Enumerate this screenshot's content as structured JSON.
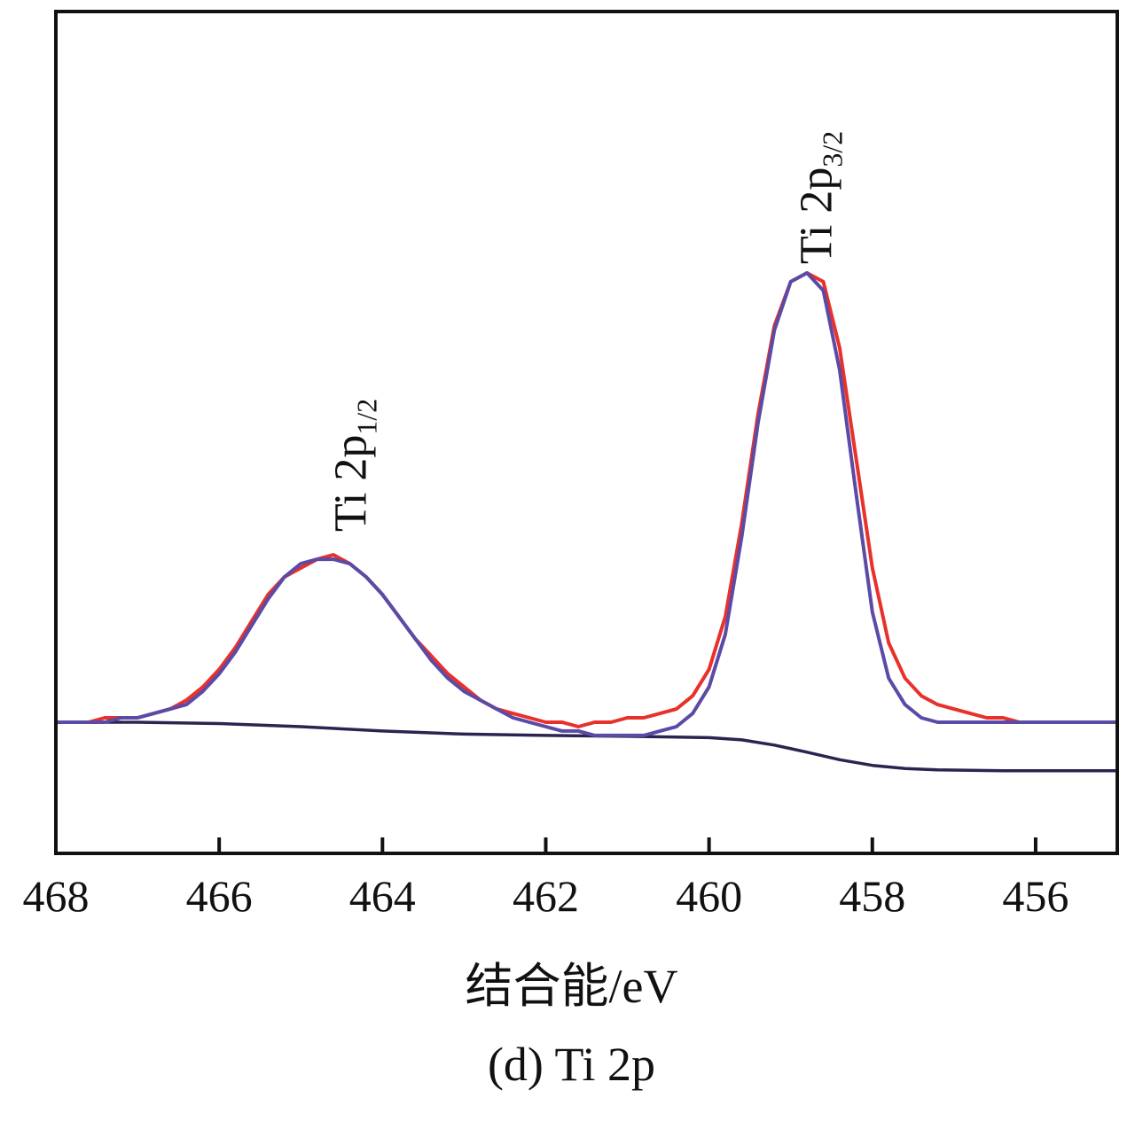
{
  "chart_data": {
    "type": "line",
    "title": "",
    "xlabel": "结合能/eV",
    "ylabel": "",
    "xlim": [
      468,
      455
    ],
    "x_reversed": true,
    "x_ticks": [
      468,
      466,
      464,
      462,
      460,
      458,
      456
    ],
    "y_ticks_shown": false,
    "grid": false,
    "colors": {
      "measured": "#e8312a",
      "fit": "#5b4aa6",
      "background": "#2d2350"
    },
    "peak_labels": [
      {
        "main": "Ti 2p",
        "sub": "1/2",
        "x": 464.4
      },
      {
        "main": "Ti 2p",
        "sub": "3/2",
        "x": 458.7
      }
    ],
    "series": [
      {
        "role": "measured",
        "x": [
          468.0,
          467.8,
          467.6,
          467.4,
          467.2,
          467.0,
          466.8,
          466.6,
          466.4,
          466.2,
          466.0,
          465.8,
          465.6,
          465.4,
          465.2,
          465.0,
          464.8,
          464.6,
          464.4,
          464.2,
          464.0,
          463.8,
          463.6,
          463.4,
          463.2,
          463.0,
          462.8,
          462.6,
          462.4,
          462.2,
          462.0,
          461.8,
          461.6,
          461.4,
          461.2,
          461.0,
          460.8,
          460.6,
          460.4,
          460.2,
          460.0,
          459.8,
          459.6,
          459.4,
          459.2,
          459.0,
          458.8,
          458.6,
          458.4,
          458.2,
          458.0,
          457.8,
          457.6,
          457.4,
          457.2,
          457.0,
          456.8,
          456.6,
          456.4,
          456.2,
          456.0,
          455.8,
          455.6,
          455.4,
          455.2,
          455.0
        ],
        "y": [
          0.0,
          0.0,
          0.0,
          0.01,
          0.01,
          0.01,
          0.02,
          0.03,
          0.05,
          0.08,
          0.12,
          0.17,
          0.23,
          0.29,
          0.33,
          0.35,
          0.37,
          0.38,
          0.36,
          0.33,
          0.29,
          0.24,
          0.19,
          0.15,
          0.11,
          0.08,
          0.05,
          0.03,
          0.02,
          0.01,
          0.0,
          0.0,
          -0.01,
          0.0,
          0.0,
          0.01,
          0.01,
          0.02,
          0.03,
          0.06,
          0.12,
          0.24,
          0.45,
          0.7,
          0.9,
          1.0,
          1.02,
          1.0,
          0.85,
          0.6,
          0.35,
          0.18,
          0.1,
          0.06,
          0.04,
          0.03,
          0.02,
          0.01,
          0.01,
          0.0,
          0.0,
          0.0,
          0.0,
          0.0,
          0.0,
          0.0
        ]
      },
      {
        "role": "fit",
        "x": [
          468.0,
          467.8,
          467.6,
          467.4,
          467.2,
          467.0,
          466.8,
          466.6,
          466.4,
          466.2,
          466.0,
          465.8,
          465.6,
          465.4,
          465.2,
          465.0,
          464.8,
          464.6,
          464.4,
          464.2,
          464.0,
          463.8,
          463.6,
          463.4,
          463.2,
          463.0,
          462.8,
          462.6,
          462.4,
          462.2,
          462.0,
          461.8,
          461.6,
          461.4,
          461.2,
          461.0,
          460.8,
          460.6,
          460.4,
          460.2,
          460.0,
          459.8,
          459.6,
          459.4,
          459.2,
          459.0,
          458.8,
          458.6,
          458.4,
          458.2,
          458.0,
          457.8,
          457.6,
          457.4,
          457.2,
          457.0,
          456.8,
          456.6,
          456.4,
          456.2,
          456.0,
          455.8,
          455.6,
          455.4,
          455.2,
          455.0
        ],
        "y": [
          0.0,
          0.0,
          0.0,
          0.0,
          0.01,
          0.01,
          0.02,
          0.03,
          0.04,
          0.07,
          0.11,
          0.16,
          0.22,
          0.28,
          0.33,
          0.36,
          0.37,
          0.37,
          0.36,
          0.33,
          0.29,
          0.24,
          0.19,
          0.14,
          0.1,
          0.07,
          0.05,
          0.03,
          0.01,
          0.0,
          -0.01,
          -0.02,
          -0.02,
          -0.03,
          -0.03,
          -0.03,
          -0.03,
          -0.02,
          -0.01,
          0.02,
          0.08,
          0.2,
          0.42,
          0.68,
          0.89,
          1.0,
          1.02,
          0.98,
          0.8,
          0.52,
          0.25,
          0.1,
          0.04,
          0.01,
          0.0,
          0.0,
          0.0,
          0.0,
          0.0,
          0.0,
          0.0,
          0.0,
          0.0,
          0.0,
          0.0,
          0.0
        ]
      },
      {
        "role": "background",
        "x": [
          468.0,
          467.0,
          466.0,
          465.0,
          464.0,
          463.0,
          462.0,
          461.0,
          460.0,
          459.6,
          459.2,
          458.8,
          458.4,
          458.0,
          457.6,
          457.2,
          456.8,
          456.4,
          456.0,
          455.0
        ],
        "y": [
          0.0,
          0.0,
          -0.003,
          -0.01,
          -0.02,
          -0.027,
          -0.03,
          -0.032,
          -0.035,
          -0.04,
          -0.052,
          -0.068,
          -0.085,
          -0.098,
          -0.105,
          -0.108,
          -0.109,
          -0.11,
          -0.11,
          -0.11
        ]
      }
    ]
  },
  "caption": "(d) Ti 2p"
}
